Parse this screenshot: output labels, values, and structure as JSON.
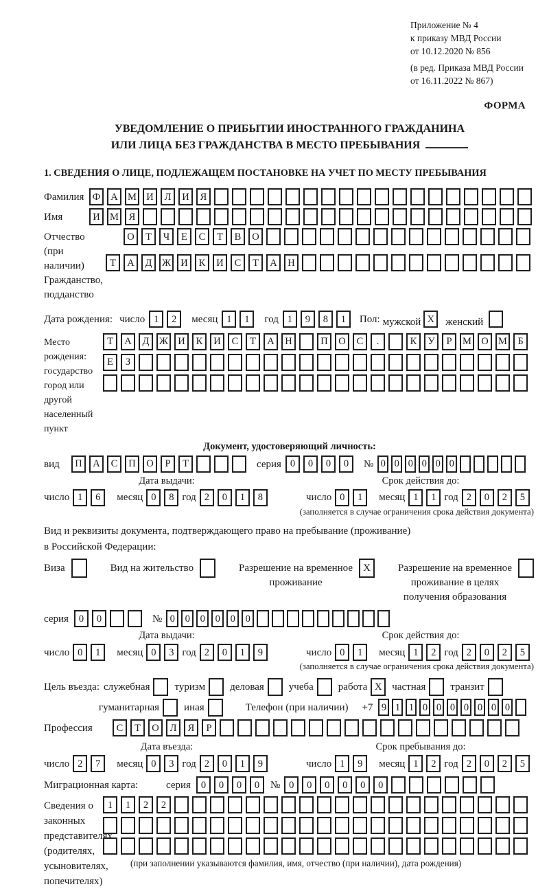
{
  "page": {
    "background": "#ffffff",
    "ink": "#1a1a1a"
  },
  "labels": {
    "day": "число",
    "month": "месяц",
    "year": "год",
    "series": "серия",
    "number": "№"
  },
  "header": {
    "appendix_lines": [
      "Приложение № 4",
      "к приказу МВД России",
      "от 10.12.2020 № 856"
    ],
    "revision_lines": [
      "(в ред. Приказа МВД России",
      "от 16.11.2022 № 867)"
    ],
    "form_label": "ФОРМА"
  },
  "title": {
    "line1": "УВЕДОМЛЕНИЕ О ПРИБЫТИИ ИНОСТРАННОГО ГРАЖДАНИНА",
    "line2": "ИЛИ ЛИЦА БЕЗ ГРАЖДАНСТВА В МЕСТО ПРЕБЫВАНИЯ"
  },
  "section1_heading": "1. СВЕДЕНИЯ О ЛИЦЕ, ПОДЛЕЖАЩЕМ ПОСТАНОВКЕ НА УЧЕТ ПО МЕСТУ ПРЕБЫВАНИЯ",
  "surname": {
    "label": "Фамилия",
    "boxes": {
      "value": "ФАМИЛИЯ",
      "cells": 25
    }
  },
  "given_name": {
    "label": "Имя",
    "boxes": {
      "value": "ИМЯ",
      "cells": 25
    }
  },
  "patronymic": {
    "label_lines": [
      "Отчество",
      "(при наличии)"
    ],
    "boxes": {
      "value": "ОТЧЕСТВО",
      "cells": 23
    }
  },
  "citizenship": {
    "label_lines": [
      "Гражданство,",
      "подданство"
    ],
    "boxes": {
      "value": "ТАДЖИКИСТАН",
      "cells": 24
    }
  },
  "birth_date": {
    "label": "Дата рождения:",
    "day": "12",
    "month": "11",
    "year": "1981"
  },
  "sex": {
    "label": "Пол:",
    "male_label": "мужской",
    "male": "X",
    "female_label": "женский",
    "female": ""
  },
  "birth_place": {
    "label_lines": [
      "Место рождения:",
      "государство",
      "город или другой",
      "населенный пункт"
    ],
    "rows": [
      {
        "value": "ТАДЖИКИСТАН ПОС. КУРМОМБ",
        "cells": 24
      },
      {
        "value": "ЕЗ",
        "cells": 24
      },
      {
        "value": "",
        "cells": 24
      }
    ]
  },
  "identity_doc": {
    "heading": "Документ, удостоверяющий личность:",
    "type_label": "вид",
    "type": {
      "value": "ПАСПОРТ",
      "cells": 10
    },
    "series": {
      "value": "0000",
      "cells": 4
    },
    "number": {
      "value": "000000",
      "cells": 11
    },
    "issue_heading": "Дата выдачи:",
    "issue": {
      "day": "16",
      "month": "08",
      "year": "2018"
    },
    "expiry_heading": "Срок действия до:",
    "expiry": {
      "day": "01",
      "month": "11",
      "year": "2025"
    },
    "expiry_note": "(заполняется в случае ограничения срока действия документа)"
  },
  "residence_doc": {
    "line1": "Вид и реквизиты документа, подтверждающего право на пребывание (проживание)",
    "line2": "в Российской Федерации:",
    "options": [
      {
        "label_lines": [
          "Виза"
        ],
        "value": ""
      },
      {
        "label_lines": [
          "Вид на жительство"
        ],
        "value": ""
      },
      {
        "label_lines": [
          "Разрешение на временное",
          "проживание"
        ],
        "value": "X"
      },
      {
        "label_lines": [
          "Разрешение на временное",
          "проживание в целях",
          "получения образования"
        ],
        "value": ""
      }
    ],
    "series": {
      "value": "00",
      "cells": 4
    },
    "number": {
      "value": "000000",
      "cells": 15
    },
    "issue_heading": "Дата выдачи:",
    "issue": {
      "day": "01",
      "month": "03",
      "year": "2019"
    },
    "expiry_heading": "Срок действия до:",
    "expiry": {
      "day": "01",
      "month": "12",
      "year": "2025"
    },
    "expiry_note": "(заполняется в случае ограничения срока действия документа)"
  },
  "visit_purpose": {
    "label": "Цель въезда:",
    "row1": [
      {
        "label": "служебная",
        "value": ""
      },
      {
        "label": "туризм",
        "value": ""
      },
      {
        "label": "деловая",
        "value": ""
      },
      {
        "label": "учеба",
        "value": ""
      },
      {
        "label": "работа",
        "value": "X"
      },
      {
        "label": "частная",
        "value": ""
      },
      {
        "label": "транзит",
        "value": ""
      }
    ],
    "row2": [
      {
        "label": "гуманитарная",
        "value": ""
      },
      {
        "label": "иная",
        "value": ""
      }
    ]
  },
  "phone": {
    "label": "Телефон (при наличии)",
    "prefix": "+7",
    "boxes": {
      "value": "9110000000",
      "cells": 11
    }
  },
  "profession": {
    "label": "Профессия",
    "boxes": {
      "value": "СТОЛЯР",
      "cells": 23
    }
  },
  "entry_dates": {
    "issue_heading": "Дата въезда:",
    "issue": {
      "day": "27",
      "month": "03",
      "year": "2019"
    },
    "expiry_heading": "Срок пребывания до:",
    "expiry": {
      "day": "19",
      "month": "12",
      "year": "2025"
    }
  },
  "migration_card": {
    "label": "Миграционная карта:",
    "series": {
      "value": "0000",
      "cells": 4
    },
    "number": {
      "value": "000000",
      "cells": 12
    }
  },
  "representatives": {
    "label_lines": [
      "Сведения о",
      "законных",
      "представителях",
      "(родителях,",
      "усыновителях,",
      "попечителях)"
    ],
    "rows": [
      {
        "value": "1122",
        "cells": 24
      },
      {
        "value": "",
        "cells": 24
      },
      {
        "value": "",
        "cells": 24
      }
    ],
    "note": "(при заполнении указываются фамилия, имя, отчество (при наличии), дата рождения)"
  }
}
